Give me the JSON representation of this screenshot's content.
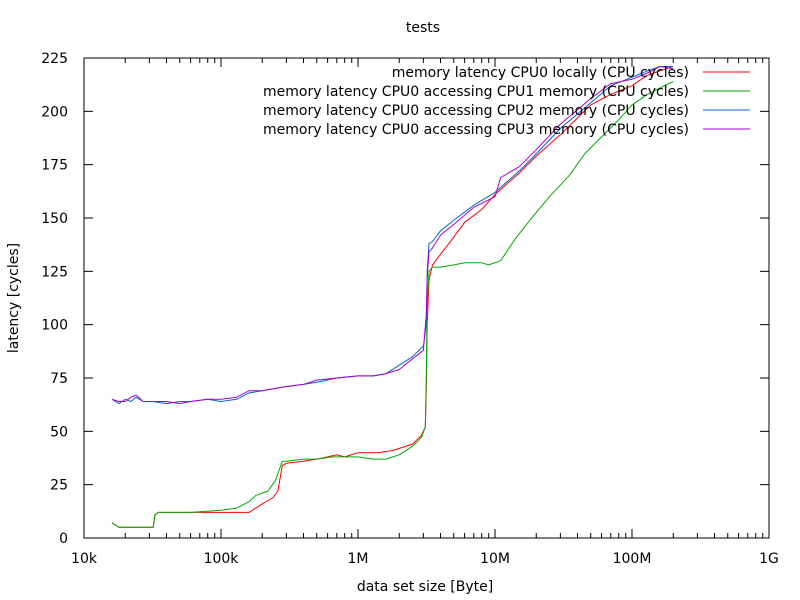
{
  "chart_data": {
    "type": "line",
    "title": "tests",
    "xlabel": "data set size [Byte]",
    "ylabel": "latency [cycles]",
    "xscale": "log",
    "xlim": [
      10000,
      1000000000
    ],
    "ylim": [
      0,
      225
    ],
    "grid": false,
    "legend_placement": "top-right",
    "x_ticks": [
      {
        "value": 10000,
        "label": "10k"
      },
      {
        "value": 100000,
        "label": "100k"
      },
      {
        "value": 1000000,
        "label": "1M"
      },
      {
        "value": 10000000,
        "label": "10M"
      },
      {
        "value": 100000000,
        "label": "100M"
      },
      {
        "value": 1000000000,
        "label": "1G"
      }
    ],
    "y_ticks": [
      {
        "value": 0,
        "label": "0"
      },
      {
        "value": 25,
        "label": "25"
      },
      {
        "value": 50,
        "label": "50"
      },
      {
        "value": 75,
        "label": "75"
      },
      {
        "value": 100,
        "label": "100"
      },
      {
        "value": 125,
        "label": "125"
      },
      {
        "value": 150,
        "label": "150"
      },
      {
        "value": 175,
        "label": "175"
      },
      {
        "value": 200,
        "label": "200"
      },
      {
        "value": 225,
        "label": "225"
      }
    ],
    "series": [
      {
        "name": "memory latency CPU0 locally (CPU cycles)",
        "color": "#ff0000",
        "points": [
          [
            16000,
            7
          ],
          [
            18000,
            5
          ],
          [
            20000,
            5
          ],
          [
            24000,
            5
          ],
          [
            28000,
            5
          ],
          [
            32000,
            5
          ],
          [
            33000,
            11
          ],
          [
            35000,
            12
          ],
          [
            40000,
            12
          ],
          [
            60000,
            12
          ],
          [
            100000,
            12
          ],
          [
            130000,
            12
          ],
          [
            160000,
            12
          ],
          [
            200000,
            16
          ],
          [
            240000,
            19
          ],
          [
            260000,
            22
          ],
          [
            280000,
            34
          ],
          [
            300000,
            35
          ],
          [
            400000,
            36
          ],
          [
            500000,
            37
          ],
          [
            600000,
            38
          ],
          [
            700000,
            39
          ],
          [
            800000,
            38
          ],
          [
            1000000,
            40
          ],
          [
            1400000,
            40
          ],
          [
            1800000,
            41
          ],
          [
            2000000,
            42
          ],
          [
            2500000,
            44
          ],
          [
            2900000,
            48
          ],
          [
            3100000,
            52
          ],
          [
            3150000,
            70
          ],
          [
            3200000,
            100
          ],
          [
            3300000,
            121
          ],
          [
            3500000,
            128
          ],
          [
            4000000,
            133
          ],
          [
            5000000,
            141
          ],
          [
            6000000,
            148
          ],
          [
            8000000,
            154
          ],
          [
            10000000,
            161
          ],
          [
            15000000,
            171
          ],
          [
            20000000,
            179
          ],
          [
            30000000,
            189
          ],
          [
            50000000,
            203
          ],
          [
            70000000,
            208
          ],
          [
            100000000,
            212
          ],
          [
            130000000,
            217
          ],
          [
            160000000,
            219
          ],
          [
            200000000,
            221
          ]
        ]
      },
      {
        "name": "memory latency CPU0 accessing CPU1 memory (CPU cycles)",
        "color": "#00aa00",
        "points": [
          [
            16000,
            7
          ],
          [
            18000,
            5
          ],
          [
            20000,
            5
          ],
          [
            24000,
            5
          ],
          [
            28000,
            5
          ],
          [
            32000,
            5
          ],
          [
            33000,
            11
          ],
          [
            35000,
            12
          ],
          [
            40000,
            12
          ],
          [
            60000,
            12
          ],
          [
            100000,
            13
          ],
          [
            130000,
            14
          ],
          [
            160000,
            17
          ],
          [
            180000,
            20
          ],
          [
            220000,
            22
          ],
          [
            250000,
            27
          ],
          [
            280000,
            36
          ],
          [
            300000,
            36
          ],
          [
            400000,
            37
          ],
          [
            500000,
            37
          ],
          [
            650000,
            38
          ],
          [
            800000,
            38
          ],
          [
            1000000,
            38
          ],
          [
            1300000,
            37
          ],
          [
            1600000,
            37
          ],
          [
            2000000,
            39
          ],
          [
            2500000,
            43
          ],
          [
            2900000,
            47
          ],
          [
            3100000,
            52
          ],
          [
            3150000,
            75
          ],
          [
            3200000,
            110
          ],
          [
            3300000,
            125
          ],
          [
            3500000,
            127
          ],
          [
            4000000,
            127
          ],
          [
            5000000,
            128
          ],
          [
            6000000,
            129
          ],
          [
            8000000,
            129
          ],
          [
            9000000,
            128
          ],
          [
            11000000,
            130
          ],
          [
            14000000,
            140
          ],
          [
            18000000,
            149
          ],
          [
            25000000,
            160
          ],
          [
            35000000,
            170
          ],
          [
            45000000,
            180
          ],
          [
            60000000,
            188
          ],
          [
            80000000,
            196
          ],
          [
            100000000,
            203
          ],
          [
            130000000,
            208
          ],
          [
            160000000,
            211
          ],
          [
            200000000,
            214
          ]
        ]
      },
      {
        "name": "memory latency CPU0 accessing CPU2 memory (CPU cycles)",
        "color": "#0066cc",
        "points": [
          [
            16000,
            65
          ],
          [
            18000,
            63
          ],
          [
            20000,
            65
          ],
          [
            22000,
            64
          ],
          [
            24000,
            66
          ],
          [
            27000,
            64
          ],
          [
            32000,
            64
          ],
          [
            40000,
            63
          ],
          [
            50000,
            64
          ],
          [
            60000,
            64
          ],
          [
            80000,
            65
          ],
          [
            100000,
            64
          ],
          [
            130000,
            65
          ],
          [
            160000,
            68
          ],
          [
            200000,
            69
          ],
          [
            300000,
            71
          ],
          [
            400000,
            72
          ],
          [
            500000,
            73
          ],
          [
            700000,
            75
          ],
          [
            1000000,
            76
          ],
          [
            1300000,
            76
          ],
          [
            1600000,
            77
          ],
          [
            2000000,
            81
          ],
          [
            2500000,
            85
          ],
          [
            3000000,
            90
          ],
          [
            3150000,
            100
          ],
          [
            3200000,
            125
          ],
          [
            3300000,
            138
          ],
          [
            3500000,
            139
          ],
          [
            4000000,
            144
          ],
          [
            5000000,
            149
          ],
          [
            7000000,
            156
          ],
          [
            10000000,
            162
          ],
          [
            15000000,
            172
          ],
          [
            20000000,
            180
          ],
          [
            30000000,
            192
          ],
          [
            50000000,
            204
          ],
          [
            70000000,
            212
          ],
          [
            100000000,
            216
          ],
          [
            130000000,
            219
          ],
          [
            160000000,
            221
          ],
          [
            200000000,
            221
          ]
        ]
      },
      {
        "name": "memory latency CPU0 accessing CPU3 memory (CPU cycles)",
        "color": "#aa00cc",
        "points": [
          [
            16000,
            65
          ],
          [
            18000,
            64
          ],
          [
            20000,
            64
          ],
          [
            22000,
            66
          ],
          [
            24000,
            67
          ],
          [
            27000,
            64
          ],
          [
            32000,
            64
          ],
          [
            40000,
            64
          ],
          [
            50000,
            63
          ],
          [
            60000,
            64
          ],
          [
            80000,
            65
          ],
          [
            100000,
            65
          ],
          [
            130000,
            66
          ],
          [
            160000,
            69
          ],
          [
            200000,
            69
          ],
          [
            300000,
            71
          ],
          [
            400000,
            72
          ],
          [
            500000,
            74
          ],
          [
            700000,
            75
          ],
          [
            1000000,
            76
          ],
          [
            1300000,
            76
          ],
          [
            1600000,
            77
          ],
          [
            2000000,
            79
          ],
          [
            2500000,
            84
          ],
          [
            3000000,
            88
          ],
          [
            3150000,
            105
          ],
          [
            3200000,
            122
          ],
          [
            3300000,
            134
          ],
          [
            3500000,
            136
          ],
          [
            4000000,
            142
          ],
          [
            5000000,
            147
          ],
          [
            7000000,
            155
          ],
          [
            10000000,
            160
          ],
          [
            11000000,
            169
          ],
          [
            15000000,
            174
          ],
          [
            20000000,
            182
          ],
          [
            30000000,
            194
          ],
          [
            50000000,
            206
          ],
          [
            70000000,
            213
          ],
          [
            100000000,
            215
          ],
          [
            130000000,
            218
          ],
          [
            160000000,
            221
          ],
          [
            200000000,
            220
          ]
        ]
      }
    ]
  }
}
